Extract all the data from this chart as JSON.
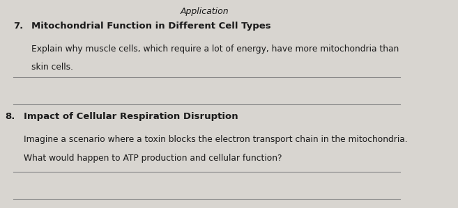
{
  "background_color": "#d8d5d0",
  "header_text": "Application",
  "q7_number": "7.",
  "q7_title": "Mitochondrial Function in Different Cell Types",
  "q7_body_line1": "Explain why muscle cells, which require a lot of energy, have more mitochondria than",
  "q7_body_line2": "skin cells.",
  "q8_number": "8.",
  "q8_title": "Impact of Cellular Respiration Disruption",
  "q8_body_line1": "Imagine a scenario where a toxin blocks the electron transport chain in the mitochondria.",
  "q8_body_line2": "What would happen to ATP production and cellular function?",
  "line_color": "#888888",
  "text_color": "#1a1a1a",
  "answer_lines_q7": [
    0.63,
    0.5
  ],
  "answer_lines_q8": [
    0.17,
    0.04
  ],
  "title_fontsize": 9.5,
  "body_fontsize": 8.8,
  "header_fontsize": 9
}
